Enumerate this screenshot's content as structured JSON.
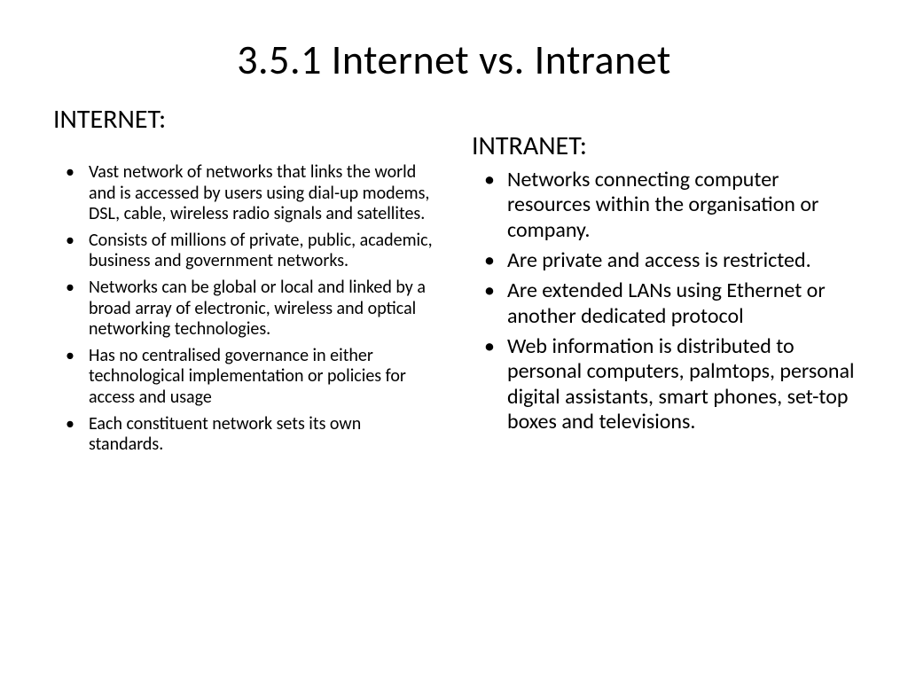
{
  "title": "3.5.1 Internet vs. Intranet",
  "left": {
    "heading": "INTERNET:",
    "items": [
      "Vast network of networks that links the world and is accessed by users using dial-up modems, DSL, cable, wireless radio signals and satellites.",
      "Consists of millions of private, public, academic, business and government networks.",
      "Networks can be global or local and linked by a broad array of electronic, wireless and optical networking technologies.",
      "Has no centralised governance in either technological implementation or policies for access and usage",
      "Each constituent network sets its own standards."
    ]
  },
  "right": {
    "heading": "INTRANET:",
    "items": [
      "Networks connecting computer resources within the organisation or company.",
      "Are private and access is restricted.",
      "Are extended LANs using Ethernet or another dedicated protocol",
      "Web information is distributed to personal computers, palmtops, personal digital assistants, smart phones, set-top boxes and televisions."
    ]
  },
  "colors": {
    "background": "#ffffff",
    "text": "#000000"
  }
}
